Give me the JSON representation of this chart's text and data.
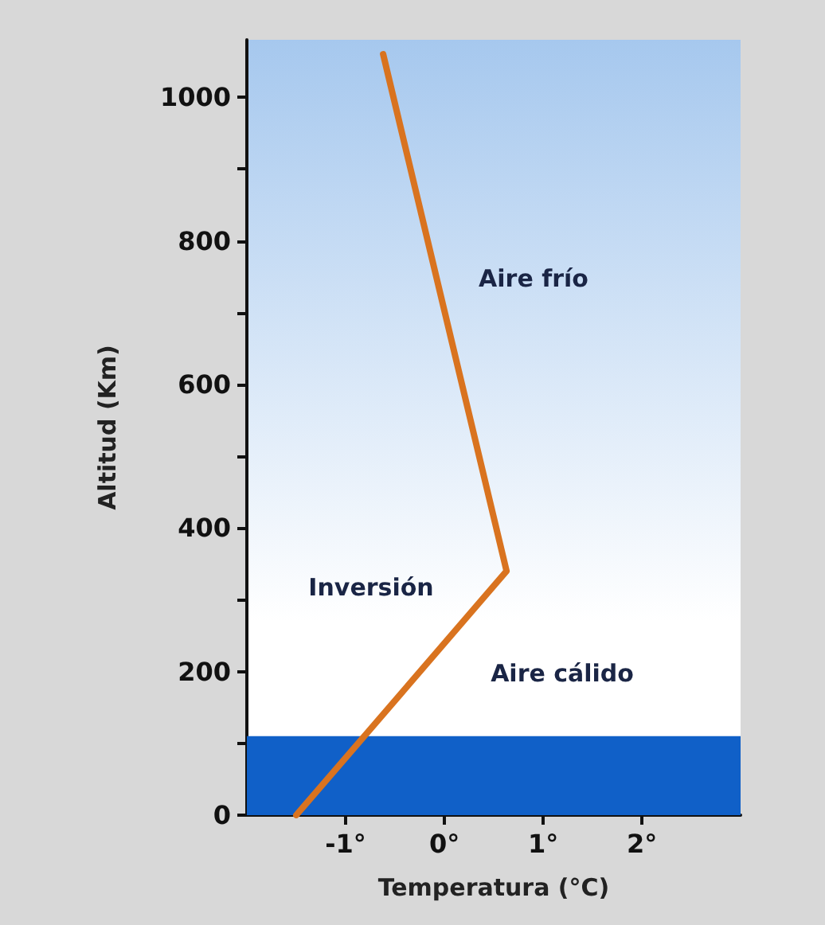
{
  "chart_data": {
    "type": "line",
    "xlabel": "Temperatura (°C)",
    "ylabel": "Altitud (Km)",
    "x": [
      -1.5,
      0.63,
      -0.62
    ],
    "series": [
      {
        "color": "#d9731f",
        "values": [
          0,
          340,
          1060
        ]
      }
    ],
    "xlim": [
      -2,
      3
    ],
    "ylim": [
      0,
      1080
    ],
    "xticks": [
      {
        "value": -1,
        "label": "-1°"
      },
      {
        "value": 0,
        "label": "0°"
      },
      {
        "value": 1,
        "label": "1°"
      },
      {
        "value": 2,
        "label": "2°"
      }
    ],
    "yticks": [
      0,
      {
        "value": 100,
        "label": null
      },
      200,
      {
        "value": 300,
        "label": null
      },
      400,
      {
        "value": 500,
        "label": null
      },
      600,
      {
        "value": 700,
        "label": null
      },
      800,
      {
        "value": 900,
        "label": null
      },
      1000
    ],
    "bands": [
      {
        "axis": "y",
        "from": 0,
        "to": 110,
        "color": "#1060c8"
      }
    ],
    "annotations": [
      "Aire frío",
      "Inversión",
      "Aire cálido"
    ],
    "marker": "none",
    "line_style": "solid"
  }
}
